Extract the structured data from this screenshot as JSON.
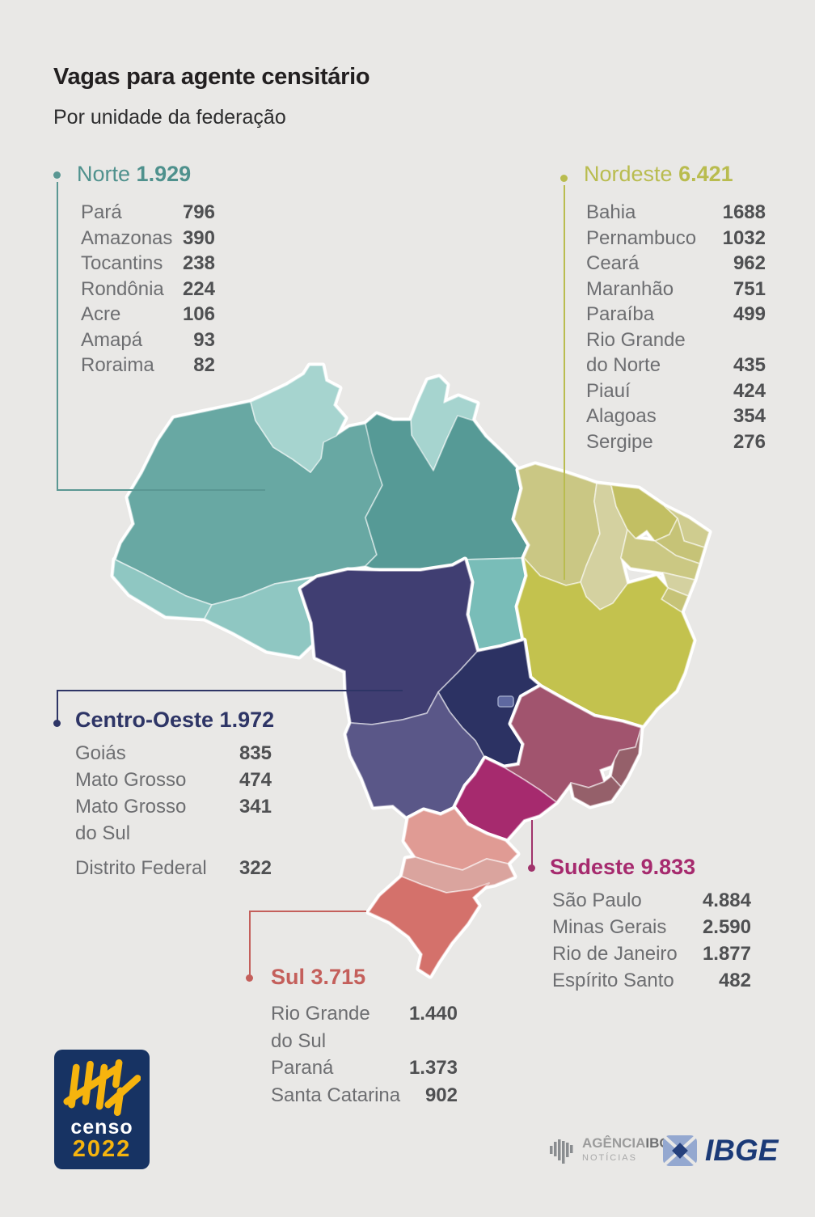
{
  "chart_data": {
    "type": "table",
    "title": "Vagas para agente censitário",
    "subtitle": "Por unidade da federação",
    "regions": [
      {
        "id": "norte",
        "label": "Norte",
        "total": "1.929",
        "color": "#4f918d",
        "states": [
          {
            "name": "Pará",
            "value": "796"
          },
          {
            "name": "Amazonas",
            "value": "390"
          },
          {
            "name": "Tocantins",
            "value": "238"
          },
          {
            "name": "Rondônia",
            "value": "224"
          },
          {
            "name": "Acre",
            "value": "106"
          },
          {
            "name": "Amapá",
            "value": "93"
          },
          {
            "name": "Roraima",
            "value": "82"
          }
        ]
      },
      {
        "id": "nordeste",
        "label": "Nordeste",
        "total": "6.421",
        "color": "#b9bc4f",
        "states": [
          {
            "name": "Bahia",
            "value": "1688"
          },
          {
            "name": "Pernambuco",
            "value": "1032"
          },
          {
            "name": "Ceará",
            "value": "962"
          },
          {
            "name": "Maranhão",
            "value": "751"
          },
          {
            "name": "Paraíba",
            "value": "499"
          },
          {
            "name": "Rio Grande\ndo Norte",
            "value": "435",
            "value_align": "bottom"
          },
          {
            "name": "Piauí",
            "value": "424"
          },
          {
            "name": "Alagoas",
            "value": "354"
          },
          {
            "name": "Sergipe",
            "value": "276"
          }
        ]
      },
      {
        "id": "centro-oeste",
        "label": "Centro-Oeste",
        "total": "1.972",
        "color": "#2e3566",
        "states": [
          {
            "name": "Goiás",
            "value": "835"
          },
          {
            "name": "Mato Grosso",
            "value": "474"
          },
          {
            "name": "Mato Grosso\ndo Sul",
            "value": "341"
          },
          {
            "name": "Distrito Federal",
            "value": "322",
            "gap_before": true
          }
        ]
      },
      {
        "id": "sudeste",
        "label": "Sudeste",
        "total": "9.833",
        "color": "#a62a6e",
        "states": [
          {
            "name": "São Paulo",
            "value": "4.884"
          },
          {
            "name": "Minas Gerais",
            "value": "2.590"
          },
          {
            "name": "Rio de Janeiro",
            "value": "1.877"
          },
          {
            "name": "Espírito Santo",
            "value": "482"
          }
        ]
      },
      {
        "id": "sul",
        "label": "Sul",
        "total": "3.715",
        "color": "#c45f5b",
        "states": [
          {
            "name": "Rio Grande\ndo Sul",
            "value": "1.440"
          },
          {
            "name": "Paraná",
            "value": "1.373"
          },
          {
            "name": "Santa Catarina",
            "value": "902"
          }
        ]
      }
    ]
  },
  "footer": {
    "censo": {
      "line1": "censo",
      "line2": "2022"
    },
    "agencia": {
      "line1": "AGÊNCIA",
      "line1b": "IBGE",
      "line2": "NOTÍCIAS"
    },
    "ibge": "IBGE"
  },
  "icons": {
    "censo_logo": "censo-2022-tally-logo",
    "agencia_icon": "brazil-bars-icon",
    "ibge_icon": "ibge-diamond-icon"
  }
}
